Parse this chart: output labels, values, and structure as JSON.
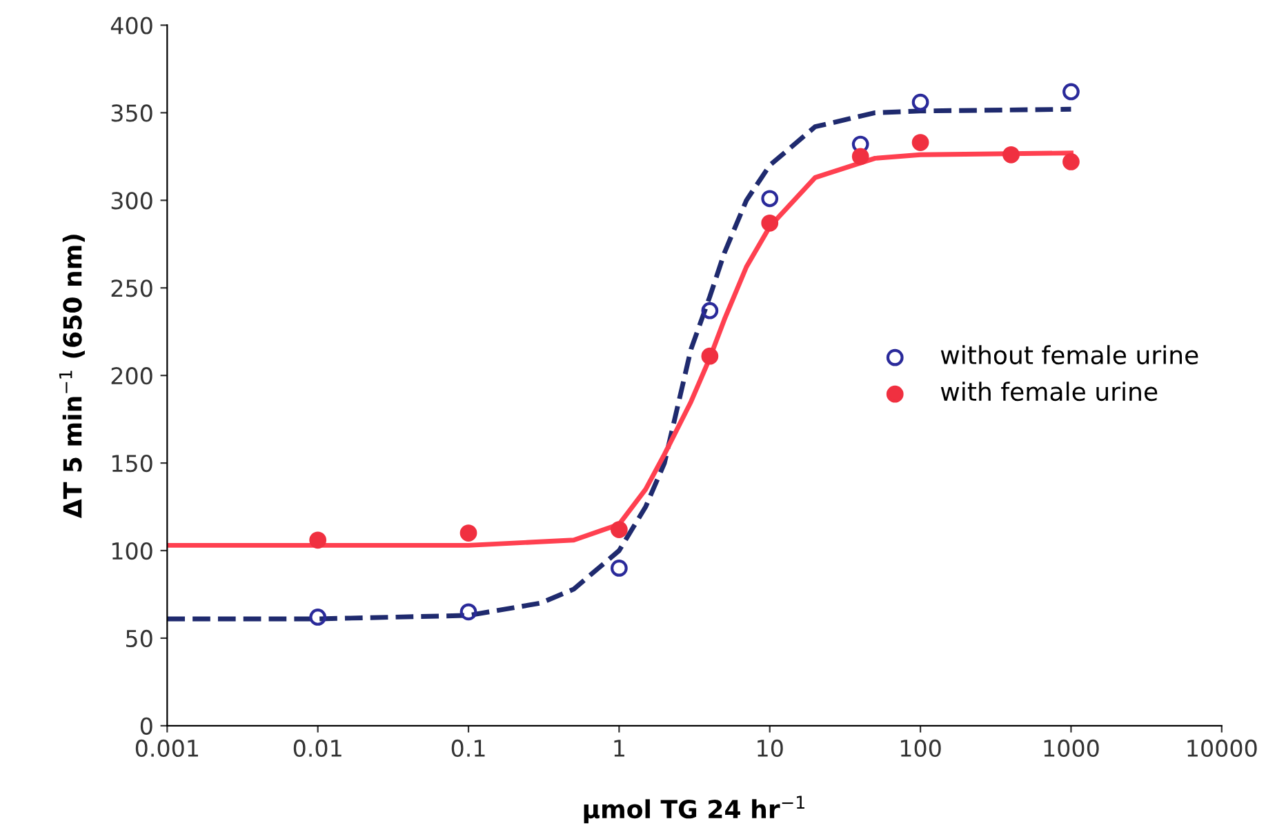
{
  "chart_data": {
    "type": "scatter",
    "log": "x",
    "xlabel": "μmol TG 24 hr$^{−1}$",
    "ylabel": "ΔT 5 min$^{−1}$ (650 nm)",
    "xlim": [
      0.001,
      10000
    ],
    "xticks": [
      0.001,
      0.01,
      0.1,
      1,
      10,
      100,
      1000,
      10000
    ],
    "ylim": [
      0,
      400
    ],
    "yticks": [
      0,
      50,
      100,
      150,
      200,
      250,
      300,
      350,
      400
    ],
    "grid": false,
    "legend": "center right",
    "marker": "circle",
    "series": [
      {
        "type": "line",
        "marker": "none",
        "line_style": "dashed",
        "color": "#1f2a6e",
        "x": [
          0.001,
          0.01,
          0.1,
          0.3,
          0.5,
          1,
          1.5,
          2,
          3,
          4,
          5,
          7,
          10,
          20,
          50,
          100,
          1000
        ],
        "values": [
          61,
          61,
          63,
          70,
          78,
          100,
          125,
          150,
          215,
          245,
          270,
          300,
          320,
          342,
          350,
          351,
          352
        ]
      },
      {
        "type": "line",
        "marker": "none",
        "line_style": "solid",
        "color": "#ff4050",
        "x": [
          0.001,
          0.01,
          0.1,
          0.5,
          1,
          1.5,
          2,
          3,
          4,
          5,
          7,
          10,
          20,
          50,
          100,
          1000
        ],
        "values": [
          103,
          103,
          103,
          106,
          115,
          135,
          155,
          185,
          210,
          232,
          262,
          285,
          313,
          324,
          326,
          327
        ]
      },
      {
        "name": "without female urine",
        "color": "#2a2a9a",
        "x": [
          0.01,
          0.1,
          1,
          4,
          10,
          40,
          100,
          1000
        ],
        "values": [
          62,
          65,
          90,
          237,
          301,
          332,
          356,
          362
        ]
      },
      {
        "name": "with female urine",
        "color": "#f03040",
        "x": [
          0.01,
          0.1,
          1,
          4,
          10,
          40,
          100,
          400,
          1000
        ],
        "values": [
          106,
          110,
          112,
          211,
          287,
          325,
          333,
          326,
          322
        ]
      }
    ]
  }
}
